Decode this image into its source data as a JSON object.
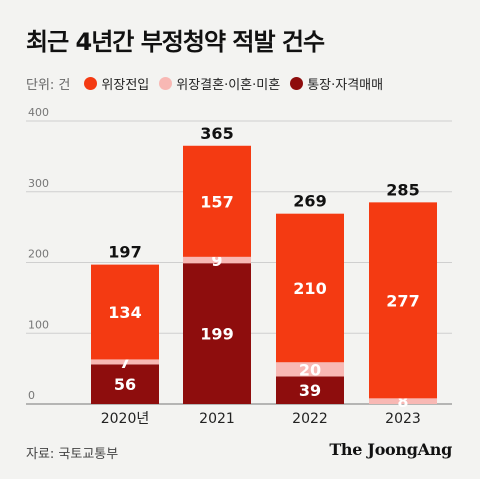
{
  "title": "최근 4년간 부정청약 적발 건수",
  "unit": "단위: 건",
  "source": "자료: 국토교통부",
  "brand": "The JoongAng",
  "chart_data": {
    "type": "bar",
    "stacked": true,
    "title": "최근 4년간 부정청약 적발 건수",
    "categories": [
      "2020년",
      "2021",
      "2022",
      "2023"
    ],
    "ylim": [
      0,
      400
    ],
    "yticks": [
      0,
      100,
      200,
      300,
      400
    ],
    "grid": true,
    "legend_position": "top-left",
    "series": [
      {
        "name": "통장·자격매매",
        "color": "#8e0d0d",
        "label_color": "#ffffff",
        "values": [
          56,
          199,
          39,
          0
        ],
        "labels": [
          "56",
          "199",
          "39",
          ""
        ]
      },
      {
        "name": "위장결혼·이혼·미혼",
        "color": "#f8b8b4",
        "label_color": "#ffffff",
        "values": [
          7,
          9,
          20,
          8
        ],
        "labels": [
          "7",
          "9",
          "20",
          "8"
        ]
      },
      {
        "name": "위장전입",
        "color": "#f43a12",
        "label_color": "#ffffff",
        "values": [
          134,
          157,
          210,
          277
        ],
        "labels": [
          "134",
          "157",
          "210",
          "277"
        ]
      }
    ],
    "totals": [
      197,
      365,
      269,
      285
    ]
  }
}
